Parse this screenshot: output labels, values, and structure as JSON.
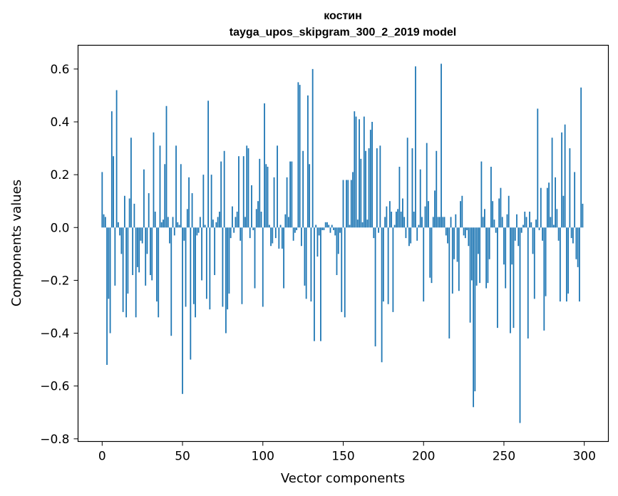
{
  "chart_data": {
    "type": "bar",
    "title": "костин",
    "subtitle": "tayga_upos_skipgram_300_2_2019 model",
    "xlabel": "Vector components",
    "ylabel": "Components values",
    "xlim": [
      -15,
      315
    ],
    "ylim": [
      -0.81,
      0.69
    ],
    "xticks": [
      0,
      50,
      100,
      150,
      200,
      250,
      300
    ],
    "xtick_labels": [
      "0",
      "50",
      "100",
      "150",
      "200",
      "250",
      "300"
    ],
    "yticks": [
      -0.8,
      -0.6,
      -0.4,
      -0.2,
      0.0,
      0.2,
      0.4,
      0.6
    ],
    "ytick_labels": [
      "−0.8",
      "−0.6",
      "−0.4",
      "−0.2",
      "0.0",
      "0.2",
      "0.4",
      "0.6"
    ],
    "bar_color": "#1f77b4",
    "grid": false,
    "values": [
      0.21,
      0.05,
      0.04,
      -0.52,
      -0.27,
      -0.4,
      0.44,
      0.27,
      -0.22,
      0.52,
      0.02,
      -0.03,
      -0.1,
      -0.32,
      0.12,
      -0.34,
      -0.25,
      0.11,
      0.34,
      -0.18,
      0.09,
      -0.34,
      -0.15,
      -0.17,
      -0.05,
      -0.06,
      0.22,
      -0.22,
      -0.1,
      0.13,
      -0.18,
      -0.2,
      0.36,
      0.06,
      -0.28,
      -0.34,
      0.31,
      0.02,
      0.03,
      0.24,
      0.46,
      0.04,
      -0.06,
      -0.41,
      0.04,
      -0.03,
      0.31,
      0.02,
      0.01,
      0.24,
      -0.63,
      -0.05,
      -0.3,
      0.07,
      0.19,
      -0.5,
      0.13,
      -0.29,
      -0.34,
      -0.03,
      -0.02,
      0.04,
      -0.2,
      0.2,
      0.01,
      -0.27,
      0.48,
      -0.31,
      0.2,
      0.03,
      -0.18,
      0.02,
      0.04,
      0.06,
      0.25,
      -0.3,
      0.29,
      -0.4,
      -0.31,
      -0.25,
      -0.04,
      0.08,
      -0.02,
      0.04,
      0.06,
      0.27,
      -0.05,
      -0.29,
      0.27,
      0.04,
      0.31,
      0.3,
      -0.04,
      0.16,
      -0.01,
      -0.23,
      0.07,
      0.1,
      0.26,
      0.06,
      -0.3,
      0.47,
      0.24,
      0.23,
      0.01,
      -0.07,
      -0.06,
      0.19,
      -0.04,
      0.31,
      -0.08,
      0.01,
      -0.08,
      -0.23,
      0.05,
      0.19,
      0.04,
      0.25,
      0.25,
      -0.05,
      -0.02,
      -0.01,
      0.55,
      0.54,
      -0.07,
      0.29,
      -0.22,
      -0.27,
      0.5,
      0.24,
      -0.28,
      0.6,
      -0.43,
      0.01,
      -0.11,
      -0.03,
      -0.43,
      -0.01,
      -0.01,
      0.02,
      0.02,
      0.01,
      -0.02,
      0.01,
      -0.01,
      -0.03,
      -0.18,
      -0.1,
      -0.02,
      -0.32,
      0.18,
      -0.34,
      0.18,
      0.18,
      0.01,
      0.18,
      0.21,
      0.44,
      0.42,
      0.03,
      0.41,
      0.26,
      0.02,
      0.42,
      0.29,
      0.03,
      0.3,
      0.37,
      0.4,
      -0.04,
      -0.45,
      0.3,
      -0.02,
      0.31,
      -0.51,
      -0.28,
      0.04,
      0.08,
      -0.29,
      0.1,
      0.06,
      -0.32,
      0.01,
      0.06,
      0.07,
      0.23,
      0.06,
      0.11,
      0.04,
      -0.04,
      0.34,
      -0.07,
      -0.06,
      0.3,
      0.06,
      0.61,
      -0.05,
      0.01,
      0.22,
      0.04,
      -0.28,
      0.08,
      0.32,
      0.1,
      -0.19,
      -0.21,
      0.04,
      0.14,
      0.29,
      0.04,
      0.04,
      0.62,
      0.04,
      0.04,
      -0.03,
      -0.06,
      -0.42,
      0.04,
      -0.25,
      -0.12,
      0.05,
      -0.13,
      -0.24,
      0.1,
      0.12,
      -0.03,
      -0.04,
      -0.01,
      -0.07,
      -0.36,
      -0.2,
      -0.68,
      -0.62,
      -0.22,
      -0.1,
      -0.21,
      0.25,
      0.04,
      0.07,
      -0.23,
      -0.21,
      -0.12,
      0.23,
      0.1,
      0.03,
      -0.02,
      -0.38,
      0.11,
      0.15,
      0.04,
      -0.14,
      -0.23,
      0.05,
      0.12,
      -0.4,
      -0.14,
      -0.38,
      -0.05,
      0.05,
      -0.07,
      -0.74,
      -0.02,
      0.01,
      0.06,
      0.04,
      -0.42,
      0.06,
      0.02,
      -0.1,
      -0.27,
      0.03,
      0.45,
      -0.01,
      0.15,
      -0.05,
      -0.39,
      -0.26,
      0.15,
      0.17,
      0.04,
      0.34,
      0.01,
      0.19,
      0.07,
      -0.05,
      -0.28,
      0.36,
      0.12,
      0.39,
      -0.28,
      -0.25,
      0.3,
      -0.04,
      -0.06,
      0.21,
      -0.12,
      -0.15,
      -0.28,
      0.53,
      0.09
    ]
  }
}
